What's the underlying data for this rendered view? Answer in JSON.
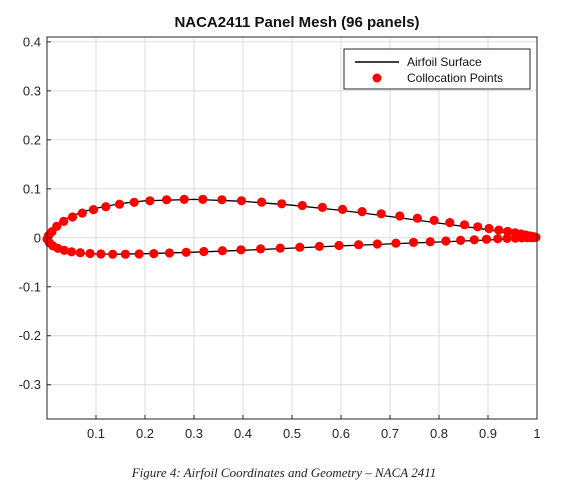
{
  "caption": "Figure 4: Airfoil Coordinates and Geometry – NACA 2411",
  "chart_data": {
    "type": "scatter",
    "title": "NACA2411 Panel Mesh (96 panels)",
    "xlim": [
      0,
      1
    ],
    "ylim": [
      -0.37,
      0.41
    ],
    "grid": true,
    "x_ticks": [
      0.1,
      0.2,
      0.3,
      0.4,
      0.5,
      0.6,
      0.7,
      0.8,
      0.9,
      1
    ],
    "x_tick_labels": [
      "0.1",
      "0.2",
      "0.3",
      "0.4",
      "0.5",
      "0.6",
      "0.7",
      "0.8",
      "0.9",
      "1"
    ],
    "y_ticks": [
      0.4,
      0.3,
      0.2,
      0.1,
      0,
      -0.1,
      -0.2,
      -0.3
    ],
    "y_tick_labels": [
      "0.4",
      "0.3",
      "0.2",
      "0.1",
      "0",
      "-0.1",
      "-0.2",
      "-0.3"
    ],
    "legend": {
      "placement": "top-right",
      "entries": [
        {
          "label": "Airfoil Surface",
          "marker": "line",
          "color": "#000000"
        },
        {
          "label": "Collocation Points",
          "marker": "dot",
          "color": "#ff0000"
        }
      ]
    },
    "series": [
      {
        "name": "Airfoil Surface",
        "kind": "line",
        "color": "#000000",
        "x": [
          1.0,
          0.9,
          0.8,
          0.7,
          0.6,
          0.5,
          0.4,
          0.3,
          0.2,
          0.15,
          0.1,
          0.075,
          0.05,
          0.025,
          0.0125,
          0.005,
          0.0,
          0.005,
          0.0125,
          0.025,
          0.05,
          0.075,
          0.1,
          0.15,
          0.2,
          0.3,
          0.4,
          0.5,
          0.6,
          0.7,
          0.8,
          0.9,
          1.0
        ],
        "y": [
          0.0,
          0.0165,
          0.03,
          0.0435,
          0.056,
          0.0665,
          0.0745,
          0.0785,
          0.0755,
          0.07,
          0.0605,
          0.0535,
          0.0445,
          0.0315,
          0.0215,
          0.013,
          0.0,
          -0.0125,
          -0.0185,
          -0.0245,
          -0.03,
          -0.032,
          -0.033,
          -0.0335,
          -0.0325,
          -0.0295,
          -0.0255,
          -0.021,
          -0.0165,
          -0.0125,
          -0.0085,
          -0.0045,
          0.0
        ]
      },
      {
        "name": "Collocation Points",
        "kind": "scatter",
        "color": "#ff0000",
        "x": [
          0.998,
          0.992,
          0.985,
          0.977,
          0.967,
          0.955,
          0.94,
          0.922,
          0.902,
          0.879,
          0.852,
          0.822,
          0.79,
          0.756,
          0.72,
          0.682,
          0.643,
          0.603,
          0.562,
          0.521,
          0.479,
          0.438,
          0.397,
          0.357,
          0.318,
          0.28,
          0.244,
          0.21,
          0.178,
          0.148,
          0.12,
          0.095,
          0.072,
          0.052,
          0.034,
          0.02,
          0.01,
          0.003,
          0.0,
          0.005,
          0.012,
          0.022,
          0.035,
          0.05,
          0.068,
          0.088,
          0.11,
          0.134,
          0.16,
          0.188,
          0.218,
          0.25,
          0.284,
          0.32,
          0.358,
          0.396,
          0.436,
          0.476,
          0.516,
          0.556,
          0.596,
          0.636,
          0.674,
          0.712,
          0.748,
          0.782,
          0.814,
          0.844,
          0.872,
          0.897,
          0.92,
          0.939,
          0.956,
          0.969,
          0.98,
          0.989,
          0.995
        ],
        "y": [
          0.001,
          0.0025,
          0.004,
          0.0058,
          0.0078,
          0.0102,
          0.0128,
          0.0158,
          0.019,
          0.0225,
          0.0265,
          0.031,
          0.0355,
          0.04,
          0.0445,
          0.049,
          0.0535,
          0.058,
          0.062,
          0.066,
          0.0695,
          0.0728,
          0.0755,
          0.0775,
          0.0785,
          0.0785,
          0.0775,
          0.0755,
          0.0725,
          0.0685,
          0.0635,
          0.0575,
          0.0505,
          0.0425,
          0.0335,
          0.0235,
          0.0125,
          0.0045,
          -0.0025,
          -0.0105,
          -0.0165,
          -0.0215,
          -0.0255,
          -0.0285,
          -0.0305,
          -0.032,
          -0.033,
          -0.0335,
          -0.0335,
          -0.033,
          -0.0322,
          -0.031,
          -0.0296,
          -0.028,
          -0.0263,
          -0.0245,
          -0.0227,
          -0.021,
          -0.0192,
          -0.0175,
          -0.0158,
          -0.0142,
          -0.0126,
          -0.011,
          -0.0095,
          -0.008,
          -0.0066,
          -0.0053,
          -0.0041,
          -0.003,
          -0.0021,
          -0.0013,
          -0.0007,
          -0.0003,
          0.0,
          0.0004,
          0.0007
        ]
      }
    ]
  }
}
